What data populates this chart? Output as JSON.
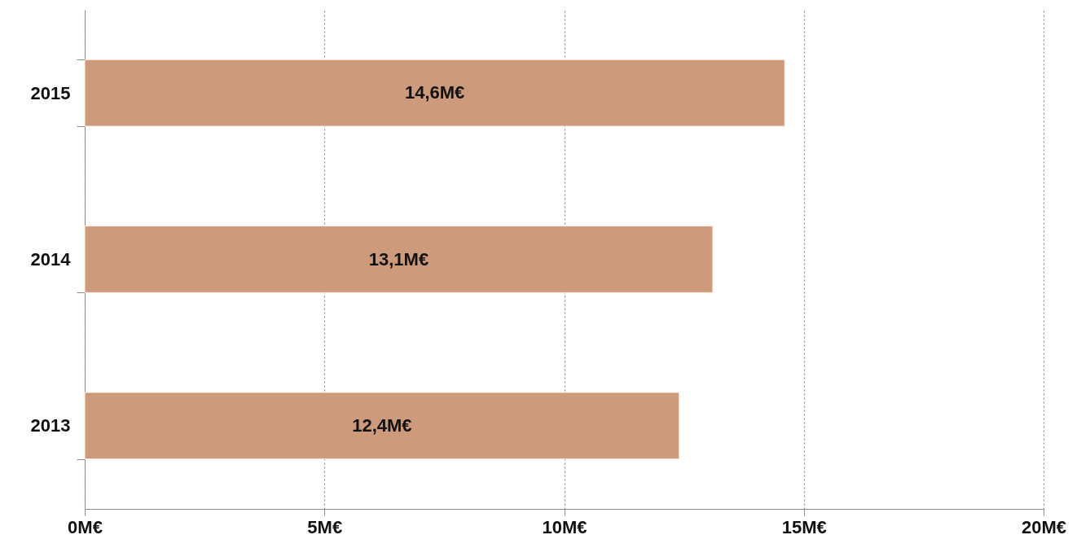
{
  "chart_data": {
    "type": "bar",
    "orientation": "horizontal",
    "categories": [
      "2015",
      "2014",
      "2013"
    ],
    "values": [
      14.6,
      13.1,
      12.4
    ],
    "value_labels": [
      "14,6M€",
      "13,1M€",
      "12,4M€"
    ],
    "color": "#cd9b7b",
    "xlim": [
      0,
      20
    ],
    "xticks": [
      {
        "value": 0,
        "label": "0M€"
      },
      {
        "value": 5,
        "label": "5M€"
      },
      {
        "value": 10,
        "label": "10M€"
      },
      {
        "value": 15,
        "label": "15M€"
      },
      {
        "value": 20,
        "label": "20M€"
      }
    ],
    "grid": "x"
  }
}
